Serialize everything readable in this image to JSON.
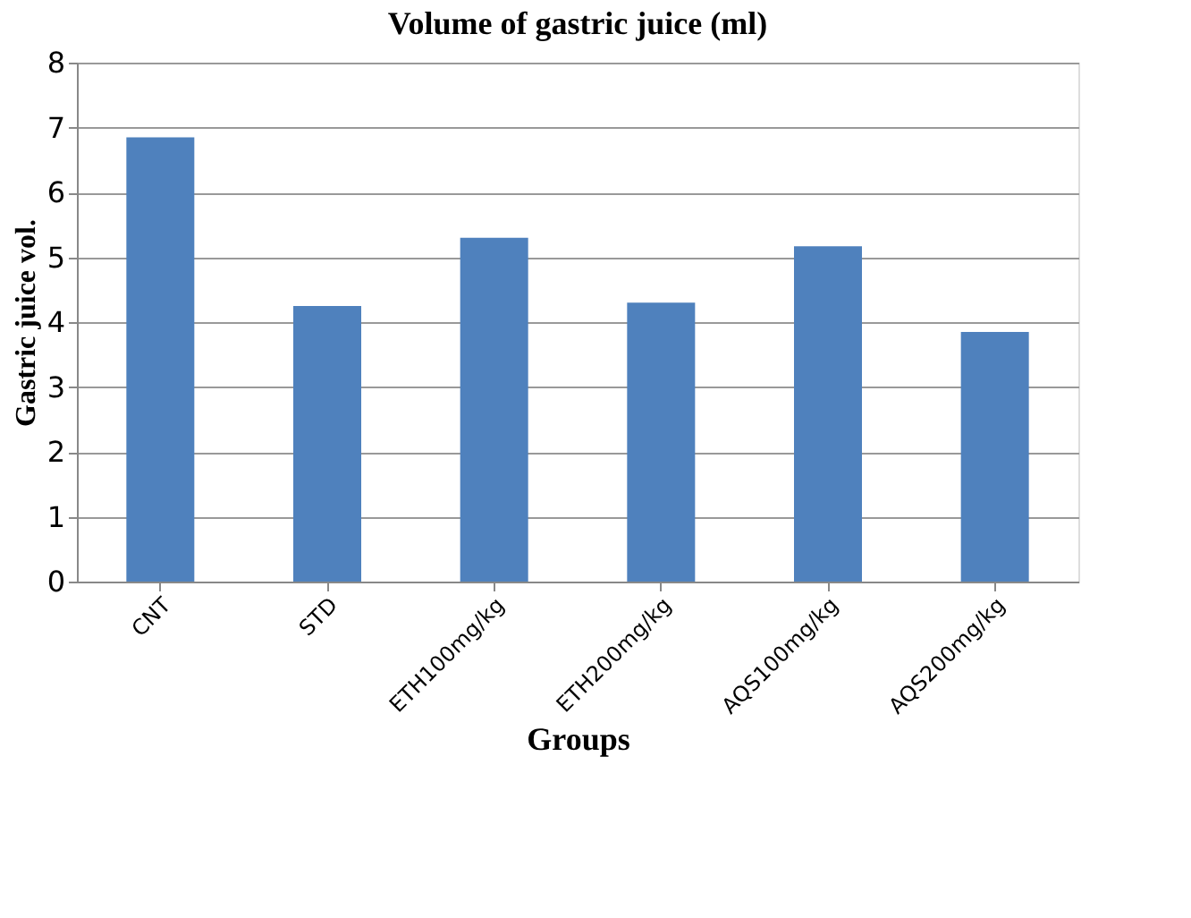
{
  "chart_data": {
    "type": "bar",
    "title": "Volume of gastric juice (ml)",
    "xlabel": "Groups",
    "ylabel": "Gastric juice vol.",
    "categories": [
      "CNT",
      "STD",
      "ETH100mg/kg",
      "ETH200mg/kg",
      "AQS100mg/kg",
      "AQS200mg/kg"
    ],
    "values": [
      6.85,
      4.25,
      5.3,
      4.3,
      5.17,
      3.85
    ],
    "color": "#4f81bd",
    "ylim": [
      0,
      8
    ],
    "yticks": [
      0,
      1,
      2,
      3,
      4,
      5,
      6,
      7,
      8
    ],
    "grid": "y"
  }
}
